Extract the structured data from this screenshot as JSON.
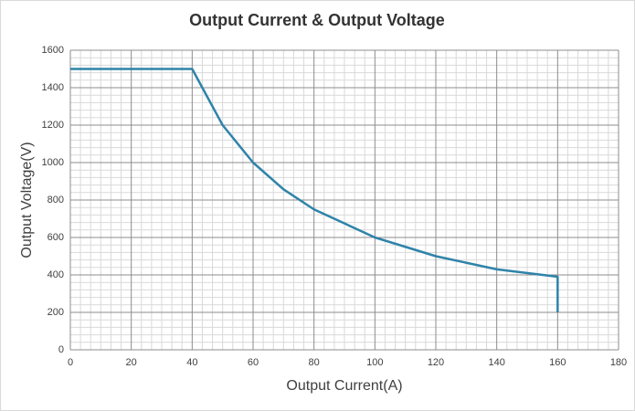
{
  "chart_data": {
    "type": "line",
    "title": "Output Current & Output Voltage",
    "x_label": "Output Current(A)",
    "y_label": "Output Voltage(V)",
    "x": [
      0,
      40,
      50,
      60,
      70,
      80,
      100,
      120,
      140,
      160,
      160
    ],
    "series": [
      {
        "name": "Output Voltage",
        "color": "#2f83a9",
        "values": [
          1500,
          1500,
          1200,
          1000,
          857,
          750,
          600,
          500,
          430,
          390,
          200
        ]
      }
    ],
    "xlim": [
      0,
      180
    ],
    "xticks": [
      0,
      20,
      40,
      60,
      80,
      100,
      120,
      140,
      160,
      180
    ],
    "ylim": [
      0,
      1600
    ],
    "yticks": [
      0,
      200,
      400,
      600,
      800,
      1000,
      1200,
      1400,
      1600
    ],
    "grid": true,
    "minor_grid": true
  }
}
